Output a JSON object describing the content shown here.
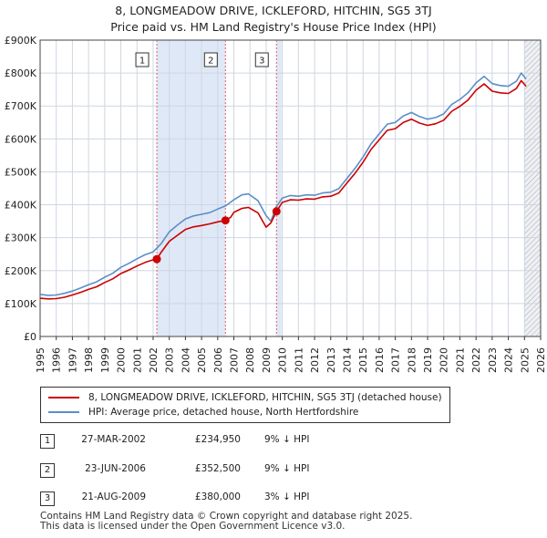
{
  "header": {
    "title_line1": "8, LONGMEADOW DRIVE, ICKLEFORD, HITCHIN, SG5 3TJ",
    "title_line2": "Price paid vs. HM Land Registry's House Price Index (HPI)"
  },
  "colors": {
    "property": "#cc0000",
    "hpi": "#5b8fc7",
    "shade": "#dfe8f6",
    "grid": "#cfd6e2",
    "marker_line": "#e06060"
  },
  "legend": {
    "property_label": "8, LONGMEADOW DRIVE, ICKLEFORD, HITCHIN, SG5 3TJ (detached house)",
    "hpi_label": "HPI: Average price, detached house, North Hertfordshire"
  },
  "transactions": [
    {
      "num": "1",
      "date": "27-MAR-2002",
      "price": "£234,950",
      "delta": "9% ↓ HPI"
    },
    {
      "num": "2",
      "date": "23-JUN-2006",
      "price": "£352,500",
      "delta": "9% ↓ HPI"
    },
    {
      "num": "3",
      "date": "21-AUG-2009",
      "price": "£380,000",
      "delta": "3% ↓ HPI"
    }
  ],
  "footer": {
    "line1": "Contains HM Land Registry data © Crown copyright and database right 2025.",
    "line2": "This data is licensed under the Open Government Licence v3.0."
  },
  "chart_data": {
    "type": "line",
    "title": "8, LONGMEADOW DRIVE, ICKLEFORD, HITCHIN, SG5 3TJ",
    "subtitle": "Price paid vs. HM Land Registry's House Price Index (HPI)",
    "xlabel": "",
    "ylabel": "",
    "xlim": [
      1995,
      2026
    ],
    "ylim": [
      0,
      900000
    ],
    "x_ticks": [
      "1995",
      "1996",
      "1997",
      "1998",
      "1999",
      "2000",
      "2001",
      "2002",
      "2003",
      "2004",
      "2005",
      "2006",
      "2007",
      "2008",
      "2009",
      "2010",
      "2011",
      "2012",
      "2013",
      "2014",
      "2015",
      "2016",
      "2017",
      "2018",
      "2019",
      "2020",
      "2021",
      "2022",
      "2023",
      "2024",
      "2025",
      "2026"
    ],
    "y_ticks": [
      {
        "value": 0,
        "label": "£0"
      },
      {
        "value": 100000,
        "label": "£100K"
      },
      {
        "value": 200000,
        "label": "£200K"
      },
      {
        "value": 300000,
        "label": "£300K"
      },
      {
        "value": 400000,
        "label": "£400K"
      },
      {
        "value": 500000,
        "label": "£500K"
      },
      {
        "value": 600000,
        "label": "£600K"
      },
      {
        "value": 700000,
        "label": "£700K"
      },
      {
        "value": 800000,
        "label": "£800K"
      },
      {
        "value": 900000,
        "label": "£900K"
      }
    ],
    "grid": true,
    "shaded_ranges": [
      [
        2002.23,
        2006.48
      ],
      [
        2009.64,
        2009.95
      ],
      [
        2025.0,
        2026.0
      ]
    ],
    "hatched_range": [
      2025.0,
      2026.0
    ],
    "series": [
      {
        "name": "HPI: Average price, detached house, North Hertfordshire",
        "x": [
          1995,
          1995.5,
          1996,
          1996.5,
          1997,
          1997.5,
          1998,
          1998.5,
          1999,
          1999.5,
          2000,
          2000.5,
          2001,
          2001.5,
          2002,
          2002.5,
          2003,
          2003.5,
          2004,
          2004.5,
          2005,
          2005.5,
          2006,
          2006.5,
          2007,
          2007.5,
          2007.9,
          2008.5,
          2009,
          2009.3,
          2009.6,
          2010,
          2010.5,
          2011,
          2011.5,
          2012,
          2012.5,
          2013,
          2013.5,
          2014,
          2014.5,
          2015,
          2015.5,
          2016,
          2016.5,
          2017,
          2017.5,
          2018,
          2018.5,
          2019,
          2019.5,
          2020,
          2020.5,
          2021,
          2021.5,
          2022,
          2022.5,
          2023,
          2023.5,
          2024,
          2024.5,
          2024.8,
          2025.1
        ],
        "values": [
          128000,
          125000,
          126000,
          131000,
          138000,
          147000,
          157000,
          166000,
          180000,
          192000,
          210000,
          222000,
          236000,
          248000,
          257000,
          282000,
          318000,
          338000,
          357000,
          366000,
          371000,
          376000,
          387000,
          397000,
          415000,
          430000,
          433000,
          412000,
          367000,
          350000,
          392000,
          420000,
          428000,
          426000,
          430000,
          429000,
          436000,
          438000,
          449000,
          480000,
          510000,
          545000,
          585000,
          615000,
          645000,
          650000,
          670000,
          680000,
          668000,
          660000,
          665000,
          676000,
          705000,
          720000,
          740000,
          770000,
          790000,
          768000,
          762000,
          760000,
          775000,
          800000,
          782000
        ]
      },
      {
        "name": "8, LONGMEADOW DRIVE, ICKLEFORD, HITCHIN, SG5 3TJ (detached house)",
        "x": [
          1995,
          1995.5,
          1996,
          1996.5,
          1997,
          1997.5,
          1998,
          1998.5,
          1999,
          1999.5,
          2000,
          2000.5,
          2001,
          2001.5,
          2002,
          2002.23,
          2002.5,
          2003,
          2003.5,
          2004,
          2004.5,
          2005,
          2005.5,
          2006,
          2006.48,
          2006.8,
          2007,
          2007.5,
          2007.9,
          2008.5,
          2009,
          2009.3,
          2009.64,
          2010,
          2010.5,
          2011,
          2011.5,
          2012,
          2012.5,
          2013,
          2013.5,
          2014,
          2014.5,
          2015,
          2015.5,
          2016,
          2016.5,
          2017,
          2017.5,
          2018,
          2018.5,
          2019,
          2019.5,
          2020,
          2020.5,
          2021,
          2021.5,
          2022,
          2022.5,
          2023,
          2023.5,
          2024,
          2024.5,
          2024.8,
          2025.1
        ],
        "values": [
          116000,
          114000,
          115000,
          119000,
          126000,
          134000,
          143000,
          151000,
          164000,
          175000,
          191000,
          202000,
          214000,
          225000,
          233000,
          234950,
          256000,
          289000,
          307000,
          325000,
          333000,
          337000,
          342000,
          348000,
          352500,
          362000,
          377000,
          389000,
          392000,
          375000,
          332000,
          345000,
          380000,
          407000,
          415000,
          414000,
          418000,
          417000,
          424000,
          426000,
          436000,
          466000,
          495000,
          529000,
          568000,
          597000,
          626000,
          631000,
          650000,
          660000,
          648000,
          641000,
          646000,
          657000,
          684000,
          699000,
          718000,
          748000,
          767000,
          745000,
          740000,
          738000,
          753000,
          777000,
          760000
        ]
      }
    ],
    "sale_points": [
      {
        "label": "1",
        "x": 2002.23,
        "value": 234950
      },
      {
        "label": "2",
        "x": 2006.48,
        "value": 352500
      },
      {
        "label": "3",
        "x": 2009.64,
        "value": 380000
      }
    ]
  }
}
